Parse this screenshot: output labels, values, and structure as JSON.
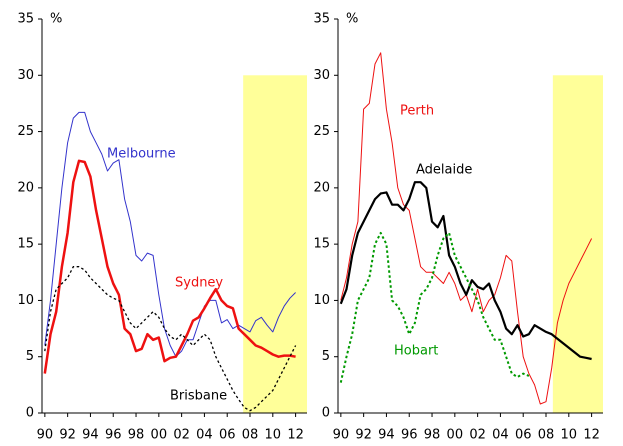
{
  "chart_data": [
    {
      "type": "line",
      "ylabel": "%",
      "xlim": [
        1989.75,
        2013
      ],
      "ylim": [
        0,
        35
      ],
      "yticks": [
        0,
        5,
        10,
        15,
        20,
        25,
        30,
        35
      ],
      "xticks": [
        {
          "value": 1990,
          "label": "90"
        },
        {
          "value": 1992,
          "label": "92"
        },
        {
          "value": 1994,
          "label": "94"
        },
        {
          "value": 1996,
          "label": "96"
        },
        {
          "value": 1998,
          "label": "98"
        },
        {
          "value": 2000,
          "label": "00"
        },
        {
          "value": 2002,
          "label": "02"
        },
        {
          "value": 2004,
          "label": "04"
        },
        {
          "value": 2006,
          "label": "06"
        },
        {
          "value": 2008,
          "label": "08"
        },
        {
          "value": 2010,
          "label": "10"
        },
        {
          "value": 2012,
          "label": "12"
        }
      ],
      "highlight": {
        "xlim": [
          2007.4,
          2013
        ],
        "ylim": [
          0,
          30
        ],
        "color": "#ffff99"
      },
      "x": [
        1990,
        1990.5,
        1991,
        1991.5,
        1992,
        1992.5,
        1993,
        1993.5,
        1994,
        1994.5,
        1995,
        1995.5,
        1996,
        1996.5,
        1997,
        1997.5,
        1998,
        1998.5,
        1999,
        1999.5,
        2000,
        2000.5,
        2001,
        2001.5,
        2002,
        2002.5,
        2003,
        2003.5,
        2004,
        2004.5,
        2005,
        2005.5,
        2006,
        2006.5,
        2007,
        2007.5,
        2008,
        2008.5,
        2009,
        2009.5,
        2010,
        2010.5,
        2011,
        2011.5,
        2012
      ],
      "series": [
        {
          "name": "Melbourne",
          "color": "#3333cc",
          "width": 1,
          "dash": "solid",
          "values": [
            6,
            10,
            15,
            20,
            24,
            26.2,
            26.7,
            26.7,
            25,
            24,
            23,
            21.5,
            22.2,
            22.5,
            19,
            17,
            14,
            13.5,
            14.2,
            14,
            10.5,
            7.5,
            6,
            5,
            5.5,
            6.5,
            6.5,
            8,
            9.5,
            10,
            10,
            8,
            8.3,
            7.5,
            7.8,
            7.5,
            7.2,
            8.2,
            8.5,
            7.8,
            7.2,
            8.5,
            9.5,
            10.2,
            10.7
          ]
        },
        {
          "name": "Sydney",
          "color": "#ee1111",
          "width": 2.5,
          "dash": "solid",
          "values": [
            3.5,
            7,
            9,
            13,
            16,
            20.5,
            22.4,
            22.3,
            21,
            18,
            15.5,
            13,
            11.5,
            10.5,
            7.5,
            7,
            5.5,
            5.7,
            7,
            6.5,
            6.7,
            4.6,
            4.9,
            5,
            6,
            7,
            8.2,
            8.5,
            9.3,
            10.2,
            11,
            10,
            9.5,
            9.3,
            7.5,
            7,
            6.5,
            6,
            5.8,
            5.5,
            5.2,
            5,
            5.1,
            5.1,
            5
          ]
        },
        {
          "name": "Brisbane",
          "color": "#000000",
          "width": 1.3,
          "dash": "dotted",
          "values": [
            5.5,
            9,
            11,
            11.5,
            12,
            13,
            13,
            12.7,
            12,
            11.5,
            11,
            10.5,
            10.2,
            10,
            9,
            8,
            7.5,
            8,
            8.5,
            9,
            8.5,
            7.5,
            6.8,
            6.5,
            7,
            6.5,
            6,
            6.5,
            7,
            6.5,
            5,
            4,
            3,
            2,
            1.2,
            0.5,
            0.2,
            0.5,
            1,
            1.5,
            2,
            3,
            4,
            5,
            6
          ]
        }
      ]
    },
    {
      "type": "line",
      "ylabel": "%",
      "xlim": [
        1989.75,
        2013
      ],
      "ylim": [
        0,
        35
      ],
      "yticks": [
        0,
        5,
        10,
        15,
        20,
        25,
        30,
        35
      ],
      "xticks": [
        {
          "value": 1990,
          "label": "90"
        },
        {
          "value": 1992,
          "label": "92"
        },
        {
          "value": 1994,
          "label": "94"
        },
        {
          "value": 1996,
          "label": "96"
        },
        {
          "value": 1998,
          "label": "98"
        },
        {
          "value": 2000,
          "label": "00"
        },
        {
          "value": 2002,
          "label": "02"
        },
        {
          "value": 2004,
          "label": "04"
        },
        {
          "value": 2006,
          "label": "06"
        },
        {
          "value": 2008,
          "label": "08"
        },
        {
          "value": 2010,
          "label": "10"
        },
        {
          "value": 2012,
          "label": "12"
        }
      ],
      "highlight": {
        "xlim": [
          2008.6,
          2013
        ],
        "ylim": [
          0,
          30
        ],
        "color": "#ffff99"
      },
      "x": [
        1990,
        1990.5,
        1991,
        1991.5,
        1992,
        1992.5,
        1993,
        1993.5,
        1994,
        1994.5,
        1995,
        1995.5,
        1996,
        1996.5,
        1997,
        1997.5,
        1998,
        1998.5,
        1999,
        1999.5,
        2000,
        2000.5,
        2001,
        2001.5,
        2002,
        2002.5,
        2003,
        2003.5,
        2004,
        2004.5,
        2005,
        2005.5,
        2006,
        2006.5,
        2007,
        2007.5,
        2008,
        2008.5,
        2009,
        2009.5,
        2010,
        2010.5,
        2011,
        2011.5,
        2012
      ],
      "series": [
        {
          "name": "Perth",
          "color": "#ee1111",
          "width": 1,
          "dash": "solid",
          "values": [
            10,
            12,
            15,
            17,
            27,
            27.5,
            31,
            32,
            27,
            24,
            20,
            18.5,
            18,
            15.5,
            13,
            12.5,
            12.5,
            12,
            11.5,
            12.5,
            11.5,
            10,
            10.5,
            9,
            11,
            9,
            10,
            10.5,
            12,
            14,
            13.5,
            9,
            5,
            3.5,
            2.5,
            0.8,
            1,
            4,
            8,
            10,
            11.5,
            12.5,
            13.5,
            14.5,
            15.5
          ]
        },
        {
          "name": "Adelaide",
          "color": "#000000",
          "width": 2.2,
          "dash": "solid",
          "values": [
            9.7,
            11,
            14,
            16,
            17,
            18,
            19,
            19.5,
            19.6,
            18.5,
            18.5,
            18,
            19,
            20.5,
            20.5,
            20,
            17,
            16.5,
            17.5,
            14,
            13,
            11.5,
            10.5,
            11.8,
            11.2,
            11,
            11.5,
            10,
            9,
            7.5,
            7,
            7.8,
            6.8,
            7,
            7.8,
            7.5,
            7.2,
            7,
            6.6,
            6.2,
            5.8,
            5.4,
            5,
            4.9,
            4.8
          ]
        },
        {
          "name": "Hobart",
          "color": "#009900",
          "width": 2,
          "dash": "dotted",
          "values": [
            2.7,
            5,
            7,
            10,
            11,
            12,
            15,
            16,
            15,
            10,
            9.5,
            8.5,
            7,
            8,
            10.5,
            11,
            12,
            14,
            15.5,
            16,
            14,
            13,
            12,
            11,
            10,
            8.5,
            7.5,
            6.5,
            6.5,
            5,
            3.5,
            3.2,
            3.5,
            3.3,
            null,
            null,
            null,
            null,
            null,
            null,
            null,
            null,
            null,
            null,
            null
          ]
        }
      ]
    }
  ]
}
